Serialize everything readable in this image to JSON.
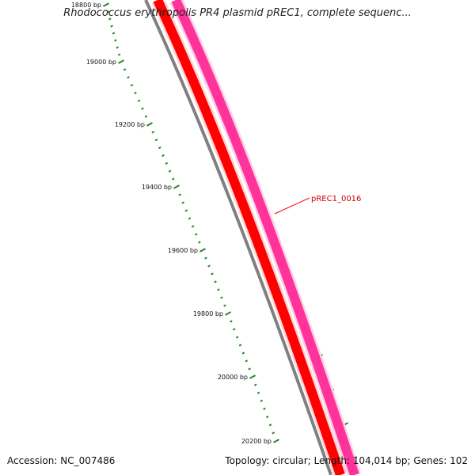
{
  "title": "Rhodococcus erythropolis PR4 plasmid pREC1, complete sequenc...",
  "accession_text": "Accession: NC_007486",
  "summary_text": "Topology: circular; Length: 104,014 bp; Genes: 102",
  "colors": {
    "backbone": "#808080",
    "cds_track": "#ff0000",
    "gene_track": "#ff3399",
    "ticks": "#228b22",
    "label_line": "#ff0000"
  },
  "scale": {
    "ticks": [
      {
        "label": "18800 bp"
      },
      {
        "label": "19000 bp"
      },
      {
        "label": "19200 bp"
      },
      {
        "label": "19400 bp"
      },
      {
        "label": "19600 bp"
      },
      {
        "label": "19800 bp"
      },
      {
        "label": "20000 bp"
      },
      {
        "label": "20200 bp"
      }
    ]
  },
  "features": [
    {
      "name": "pREC1_0016",
      "track": "gene"
    }
  ]
}
